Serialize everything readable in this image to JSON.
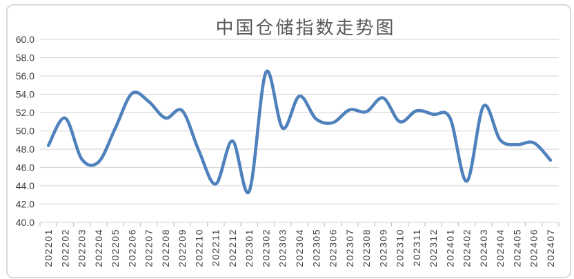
{
  "chart_data": {
    "type": "line",
    "title": "中国仓储指数走势图",
    "categories": [
      "202201",
      "202202",
      "202203",
      "202204",
      "202205",
      "202206",
      "202207",
      "202208",
      "202209",
      "202210",
      "202211",
      "202212",
      "202301",
      "202302",
      "202303",
      "202304",
      "202305",
      "202306",
      "202307",
      "202308",
      "202309",
      "202310",
      "202311",
      "202312",
      "202401",
      "202402",
      "202403",
      "202404",
      "202405",
      "202406",
      "202407"
    ],
    "values": [
      48.4,
      51.4,
      46.9,
      46.6,
      50.3,
      54.1,
      53.2,
      51.4,
      52.2,
      47.8,
      44.2,
      48.9,
      43.4,
      56.4,
      50.3,
      53.8,
      51.3,
      50.9,
      52.3,
      52.1,
      53.6,
      51.0,
      52.2,
      51.8,
      51.4,
      44.5,
      52.7,
      49.0,
      48.5,
      48.7,
      46.8
    ],
    "xlabel": "",
    "ylabel": "",
    "ylim": [
      40.0,
      60.0
    ],
    "ytick_step": 2.0,
    "yticks": [
      "40.0",
      "42.0",
      "44.0",
      "46.0",
      "48.0",
      "50.0",
      "52.0",
      "54.0",
      "56.0",
      "58.0",
      "60.0"
    ],
    "grid": "horizontal",
    "legend": "none",
    "smooth": true,
    "x_label_rotation": -90,
    "colors": {
      "line": "#4F81BD",
      "gridline": "#D9D9D9",
      "tick": "#C6C6C6",
      "title": "#595959",
      "axis_text": "#3f3f3f",
      "frame_border": "#D9D9D9",
      "background": "#ffffff"
    }
  }
}
